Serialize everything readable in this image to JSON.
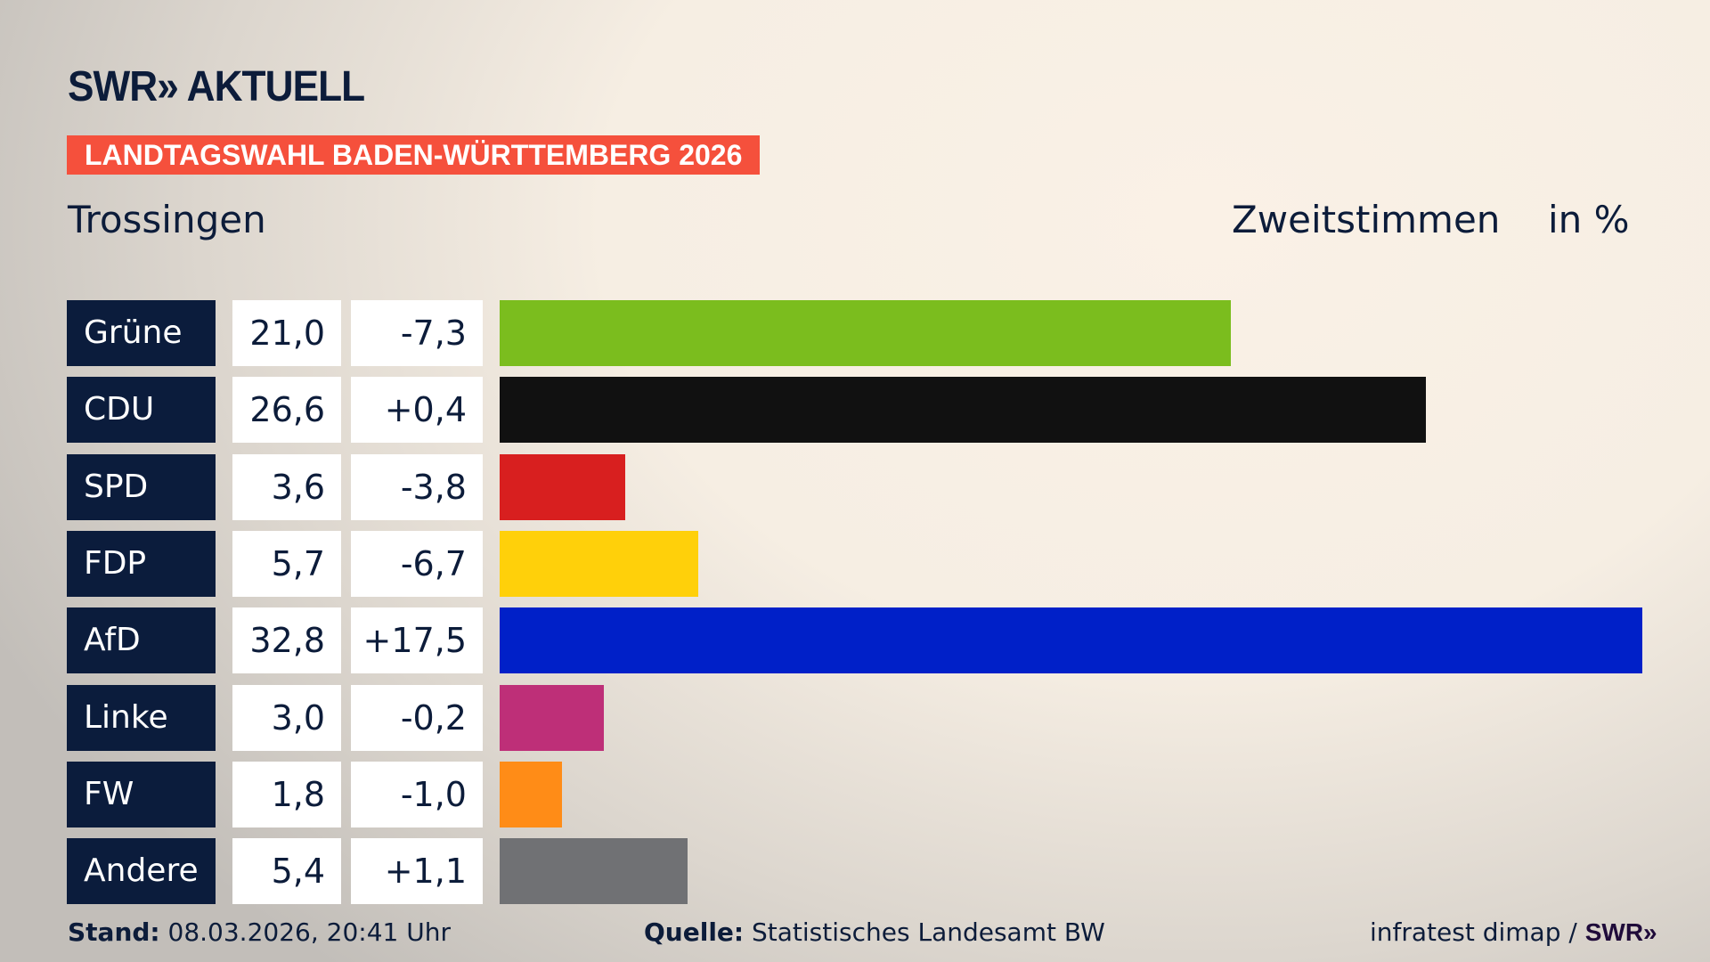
{
  "header": {
    "logo": "SWR» AKTUELL",
    "banner": "LANDTAGSWAHL BADEN-WÜRTTEMBERG 2026",
    "place": "Trossingen",
    "metric": "Zweitstimmen",
    "unit": "in %"
  },
  "chart_data": {
    "type": "bar",
    "orientation": "horizontal",
    "categories": [
      "Grüne",
      "CDU",
      "SPD",
      "FDP",
      "AfD",
      "Linke",
      "FW",
      "Andere"
    ],
    "values": [
      21.0,
      26.6,
      3.6,
      5.7,
      32.8,
      3.0,
      1.8,
      5.4
    ],
    "value_labels": [
      "21,0",
      "26,6",
      "3,6",
      "5,7",
      "32,8",
      "3,0",
      "1,8",
      "5,4"
    ],
    "diff_labels": [
      "-7,3",
      "+0,4",
      "-3,8",
      "-6,7",
      "+17,5",
      "-0,2",
      "-1,0",
      "+1,1"
    ],
    "colors": [
      "#7bbd1e",
      "#111111",
      "#d81f1f",
      "#ffd00a",
      "#0020c8",
      "#be2f78",
      "#ff8c17",
      "#707174"
    ],
    "xlim": [
      0,
      32.8
    ],
    "grid": false,
    "legend": "none"
  },
  "footer": {
    "stand_label": "Stand:",
    "stand_value": " 08.03.2026, 20:41 Uhr",
    "source_label": "Quelle:",
    "source_value": " Statistisches Landesamt BW",
    "credit": "infratest dimap / ",
    "credit_logo": "SWR»"
  }
}
